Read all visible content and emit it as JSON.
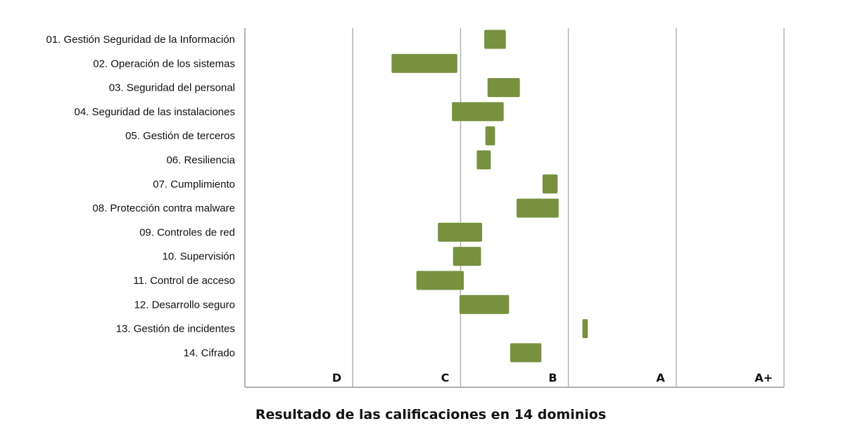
{
  "chart_data": {
    "type": "bar",
    "orientation": "horizontal-floating",
    "title": "Resultado de las calificaciones en 14 dominios",
    "x_bands": [
      "D",
      "C",
      "B",
      "A",
      "A+"
    ],
    "xlim": [
      0,
      5
    ],
    "grid": true,
    "bar_color": "#77913F",
    "categories": [
      "01. Gestión Seguridad de la Información",
      "02. Operación de los sistemas",
      "03. Seguridad del personal",
      "04. Seguridad de las instalaciones",
      "05. Gestión de terceros",
      "06. Resiliencia",
      "07. Cumplimiento",
      "08. Protección contra malware",
      "09. Controles de red",
      "10. Supervisión",
      "11. Control de acceso",
      "12. Desarrollo seguro",
      "13. Gestión de incidentes",
      "14. Cifrado"
    ],
    "ranges": [
      [
        2.22,
        2.42
      ],
      [
        1.36,
        1.97
      ],
      [
        2.25,
        2.55
      ],
      [
        1.92,
        2.4
      ],
      [
        2.23,
        2.32
      ],
      [
        2.15,
        2.28
      ],
      [
        2.76,
        2.9
      ],
      [
        2.52,
        2.91
      ],
      [
        1.79,
        2.2
      ],
      [
        1.93,
        2.19
      ],
      [
        1.59,
        2.03
      ],
      [
        1.99,
        2.45
      ],
      [
        3.13,
        3.18
      ],
      [
        2.46,
        2.75
      ]
    ]
  }
}
